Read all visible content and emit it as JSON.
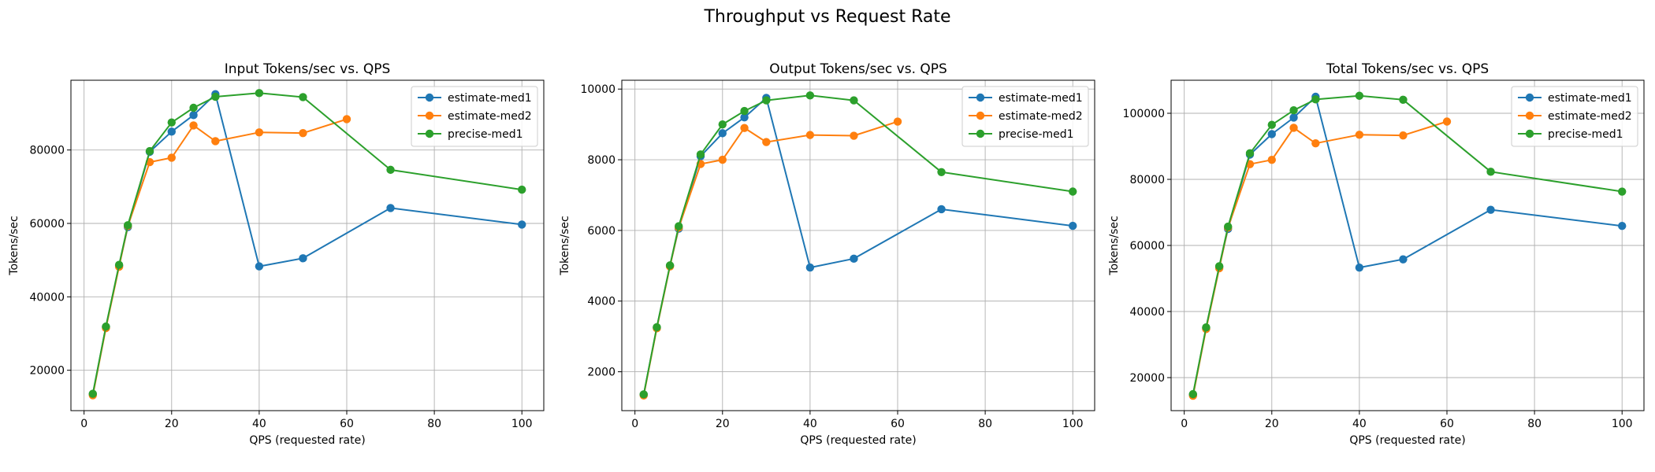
{
  "figure": {
    "title": "Throughput vs Request Rate"
  },
  "colors": {
    "estimate-med1": "#1f77b4",
    "estimate-med2": "#ff7f0e",
    "precise-med1": "#2ca02c"
  },
  "chart_data": [
    {
      "type": "line",
      "title": "Input Tokens/sec vs. QPS",
      "xlabel": "QPS (requested rate)",
      "ylabel": "Tokens/sec",
      "xlim": [
        -3,
        105
      ],
      "ylim": [
        9000,
        99000
      ],
      "xticks": [
        0,
        20,
        40,
        60,
        80,
        100
      ],
      "yticks": [
        20000,
        40000,
        60000,
        80000
      ],
      "grid": true,
      "legend": "top-right",
      "series": [
        {
          "name": "estimate-med1",
          "x": [
            2,
            5,
            8,
            10,
            15,
            20,
            25,
            30,
            40,
            50,
            70,
            100
          ],
          "y": [
            13500,
            31800,
            48500,
            59000,
            79500,
            85000,
            89500,
            95200,
            48300,
            50500,
            64200,
            59700
          ]
        },
        {
          "name": "estimate-med2",
          "x": [
            2,
            5,
            8,
            10,
            15,
            20,
            25,
            30,
            40,
            50,
            60
          ],
          "y": [
            13200,
            31500,
            48200,
            59300,
            76700,
            77900,
            86700,
            82400,
            84800,
            84600,
            88400
          ]
        },
        {
          "name": "precise-med1",
          "x": [
            2,
            5,
            8,
            10,
            15,
            20,
            25,
            30,
            40,
            50,
            70,
            100
          ],
          "y": [
            13600,
            31900,
            48700,
            59500,
            79700,
            87500,
            91500,
            94500,
            95500,
            94400,
            74600,
            69200
          ]
        }
      ]
    },
    {
      "type": "line",
      "title": "Output Tokens/sec vs. QPS",
      "xlabel": "QPS (requested rate)",
      "ylabel": "Tokens/sec",
      "xlim": [
        -3,
        105
      ],
      "ylim": [
        900,
        10250
      ],
      "xticks": [
        0,
        20,
        40,
        60,
        80,
        100
      ],
      "yticks": [
        2000,
        4000,
        6000,
        8000,
        10000
      ],
      "grid": true,
      "legend": "top-right",
      "series": [
        {
          "name": "estimate-med1",
          "x": [
            2,
            5,
            8,
            10,
            15,
            20,
            25,
            30,
            40,
            50,
            70,
            100
          ],
          "y": [
            1350,
            3250,
            5000,
            6050,
            8100,
            8750,
            9200,
            9750,
            4950,
            5200,
            6600,
            6130
          ]
        },
        {
          "name": "estimate-med2",
          "x": [
            2,
            5,
            8,
            10,
            15,
            20,
            25,
            30,
            40,
            50,
            60
          ],
          "y": [
            1330,
            3230,
            4980,
            6080,
            7880,
            8000,
            8900,
            8500,
            8700,
            8680,
            9080
          ]
        },
        {
          "name": "precise-med1",
          "x": [
            2,
            5,
            8,
            10,
            15,
            20,
            25,
            30,
            40,
            50,
            70,
            100
          ],
          "y": [
            1360,
            3260,
            5010,
            6120,
            8150,
            9000,
            9380,
            9680,
            9820,
            9680,
            7650,
            7100
          ]
        }
      ]
    },
    {
      "type": "line",
      "title": "Total Tokens/sec vs. QPS",
      "xlabel": "QPS (requested rate)",
      "ylabel": "Tokens/sec",
      "xlim": [
        -3,
        105
      ],
      "ylim": [
        10000,
        110000
      ],
      "xticks": [
        0,
        20,
        40,
        60,
        80,
        100
      ],
      "yticks": [
        20000,
        40000,
        60000,
        80000,
        100000
      ],
      "grid": true,
      "legend": "top-right",
      "series": [
        {
          "name": "estimate-med1",
          "x": [
            2,
            5,
            8,
            10,
            15,
            20,
            25,
            30,
            40,
            50,
            70,
            100
          ],
          "y": [
            14800,
            35000,
            53500,
            65000,
            87500,
            93700,
            98700,
            105000,
            53300,
            55800,
            70800,
            65900
          ]
        },
        {
          "name": "estimate-med2",
          "x": [
            2,
            5,
            8,
            10,
            15,
            20,
            25,
            30,
            40,
            50,
            60
          ],
          "y": [
            14500,
            34700,
            53100,
            65400,
            84600,
            85900,
            95600,
            90900,
            93500,
            93300,
            97500
          ]
        },
        {
          "name": "precise-med1",
          "x": [
            2,
            5,
            8,
            10,
            15,
            20,
            25,
            30,
            40,
            50,
            70,
            100
          ],
          "y": [
            15000,
            35200,
            53700,
            65700,
            87900,
            96500,
            100900,
            104200,
            105300,
            104100,
            82300,
            76300
          ]
        }
      ]
    }
  ]
}
